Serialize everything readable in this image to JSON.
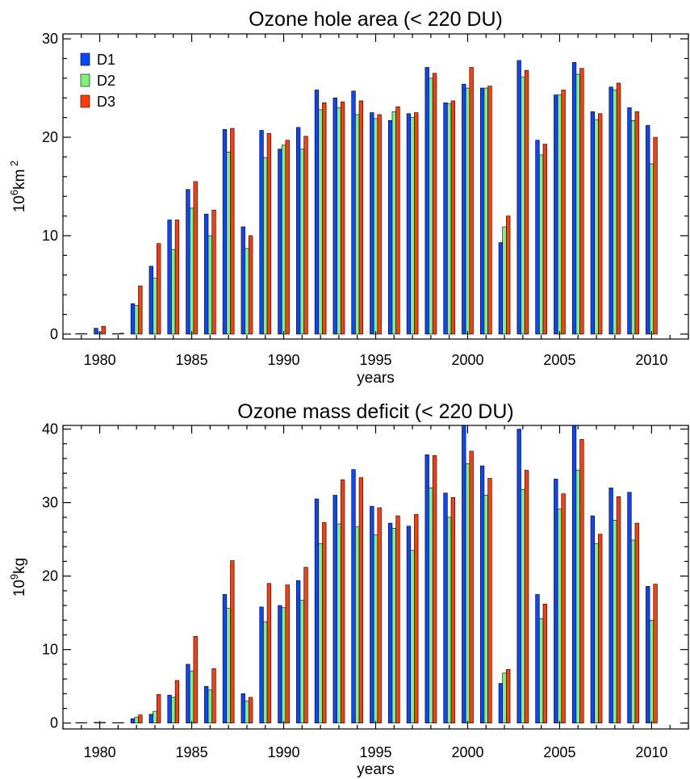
{
  "chart_data": [
    {
      "type": "bar",
      "title": "Ozone hole area (< 220 DU)",
      "xlabel": "years",
      "ylabel": {
        "base": "10",
        "exp": "6",
        "unit": "km",
        "unit_exp": "2"
      },
      "xlim": [
        1978,
        2012
      ],
      "ylim": [
        -0.5,
        30.5
      ],
      "xticks": [
        1980,
        1985,
        1990,
        1995,
        2000,
        2005,
        2010
      ],
      "yticks": [
        0,
        10,
        20,
        30
      ],
      "legend": "top-left",
      "x": [
        1979,
        1980,
        1981,
        1982,
        1983,
        1984,
        1985,
        1986,
        1987,
        1988,
        1989,
        1990,
        1991,
        1992,
        1993,
        1994,
        1995,
        1996,
        1997,
        1998,
        1999,
        2000,
        2001,
        2002,
        2003,
        2004,
        2005,
        2006,
        2007,
        2008,
        2009,
        2010
      ],
      "series": [
        {
          "name": "D1",
          "color": "#0b45ff",
          "values": [
            0.0,
            0.6,
            0.0,
            3.1,
            6.9,
            11.6,
            14.7,
            12.2,
            20.8,
            10.9,
            20.7,
            18.8,
            21.0,
            24.8,
            24.0,
            24.7,
            22.5,
            21.7,
            22.4,
            27.1,
            23.5,
            25.4,
            25.0,
            9.3,
            27.8,
            19.7,
            24.3,
            27.6,
            22.6,
            25.1,
            23.0,
            21.2
          ]
        },
        {
          "name": "D2",
          "color": "#80f080",
          "values": [
            0.0,
            0.2,
            0.0,
            2.9,
            5.7,
            8.6,
            12.8,
            10.0,
            18.5,
            8.7,
            17.9,
            19.2,
            18.8,
            22.8,
            23.0,
            22.3,
            21.9,
            22.6,
            22.0,
            26.0,
            23.4,
            25.0,
            25.0,
            10.9,
            26.1,
            18.2,
            24.3,
            26.4,
            21.8,
            24.8,
            21.7,
            17.3
          ]
        },
        {
          "name": "D3",
          "color": "#ff3c0a",
          "values": [
            0.0,
            0.8,
            0.1,
            4.9,
            9.2,
            11.6,
            15.5,
            12.6,
            20.9,
            10.0,
            20.4,
            19.7,
            20.1,
            23.5,
            23.6,
            23.7,
            22.3,
            23.1,
            22.5,
            26.5,
            23.7,
            27.1,
            25.2,
            12.0,
            26.8,
            19.3,
            24.8,
            27.0,
            22.4,
            25.5,
            22.6,
            20.0
          ]
        }
      ]
    },
    {
      "type": "bar",
      "title": "Ozone mass deficit (< 220 DU)",
      "xlabel": "years",
      "ylabel": {
        "base": "10",
        "exp": "9",
        "unit": "kg",
        "unit_exp": ""
      },
      "xlim": [
        1978,
        2012
      ],
      "ylim": [
        -0.8,
        40.5
      ],
      "xticks": [
        1980,
        1985,
        1990,
        1995,
        2000,
        2005,
        2010
      ],
      "yticks": [
        0,
        10,
        20,
        30,
        40
      ],
      "x": [
        1979,
        1980,
        1981,
        1982,
        1983,
        1984,
        1985,
        1986,
        1987,
        1988,
        1989,
        1990,
        1991,
        1992,
        1993,
        1994,
        1995,
        1996,
        1997,
        1998,
        1999,
        2000,
        2001,
        2002,
        2003,
        2004,
        2005,
        2006,
        2007,
        2008,
        2009,
        2010
      ],
      "series": [
        {
          "name": "D1",
          "color": "#0b45ff",
          "values": [
            0.0,
            0.1,
            0.0,
            0.6,
            1.2,
            3.8,
            8.0,
            5.0,
            17.5,
            4.0,
            15.8,
            16.0,
            19.4,
            30.5,
            31.0,
            34.5,
            29.5,
            27.2,
            26.8,
            36.5,
            31.3,
            40.5,
            35.0,
            5.4,
            40.0,
            17.5,
            33.2,
            40.5,
            28.2,
            32.0,
            31.4,
            18.6
          ]
        },
        {
          "name": "D2",
          "color": "#80f080",
          "values": [
            0.0,
            0.0,
            0.0,
            0.8,
            1.6,
            3.5,
            7.1,
            4.5,
            15.6,
            3.0,
            13.8,
            15.7,
            16.7,
            24.4,
            27.1,
            26.7,
            25.6,
            26.5,
            23.5,
            32.0,
            28.0,
            35.3,
            31.0,
            6.8,
            31.8,
            14.2,
            29.1,
            34.4,
            24.4,
            27.6,
            24.9,
            14.0
          ]
        },
        {
          "name": "D3",
          "color": "#ff3c0a",
          "values": [
            0.0,
            0.1,
            0.0,
            1.1,
            3.9,
            5.8,
            11.8,
            7.4,
            22.1,
            3.5,
            19.0,
            18.8,
            21.2,
            27.3,
            33.1,
            33.4,
            29.3,
            28.2,
            28.4,
            36.4,
            30.7,
            37.0,
            33.3,
            7.3,
            34.4,
            16.2,
            31.2,
            38.6,
            25.7,
            30.8,
            27.2,
            18.9
          ]
        }
      ]
    }
  ]
}
